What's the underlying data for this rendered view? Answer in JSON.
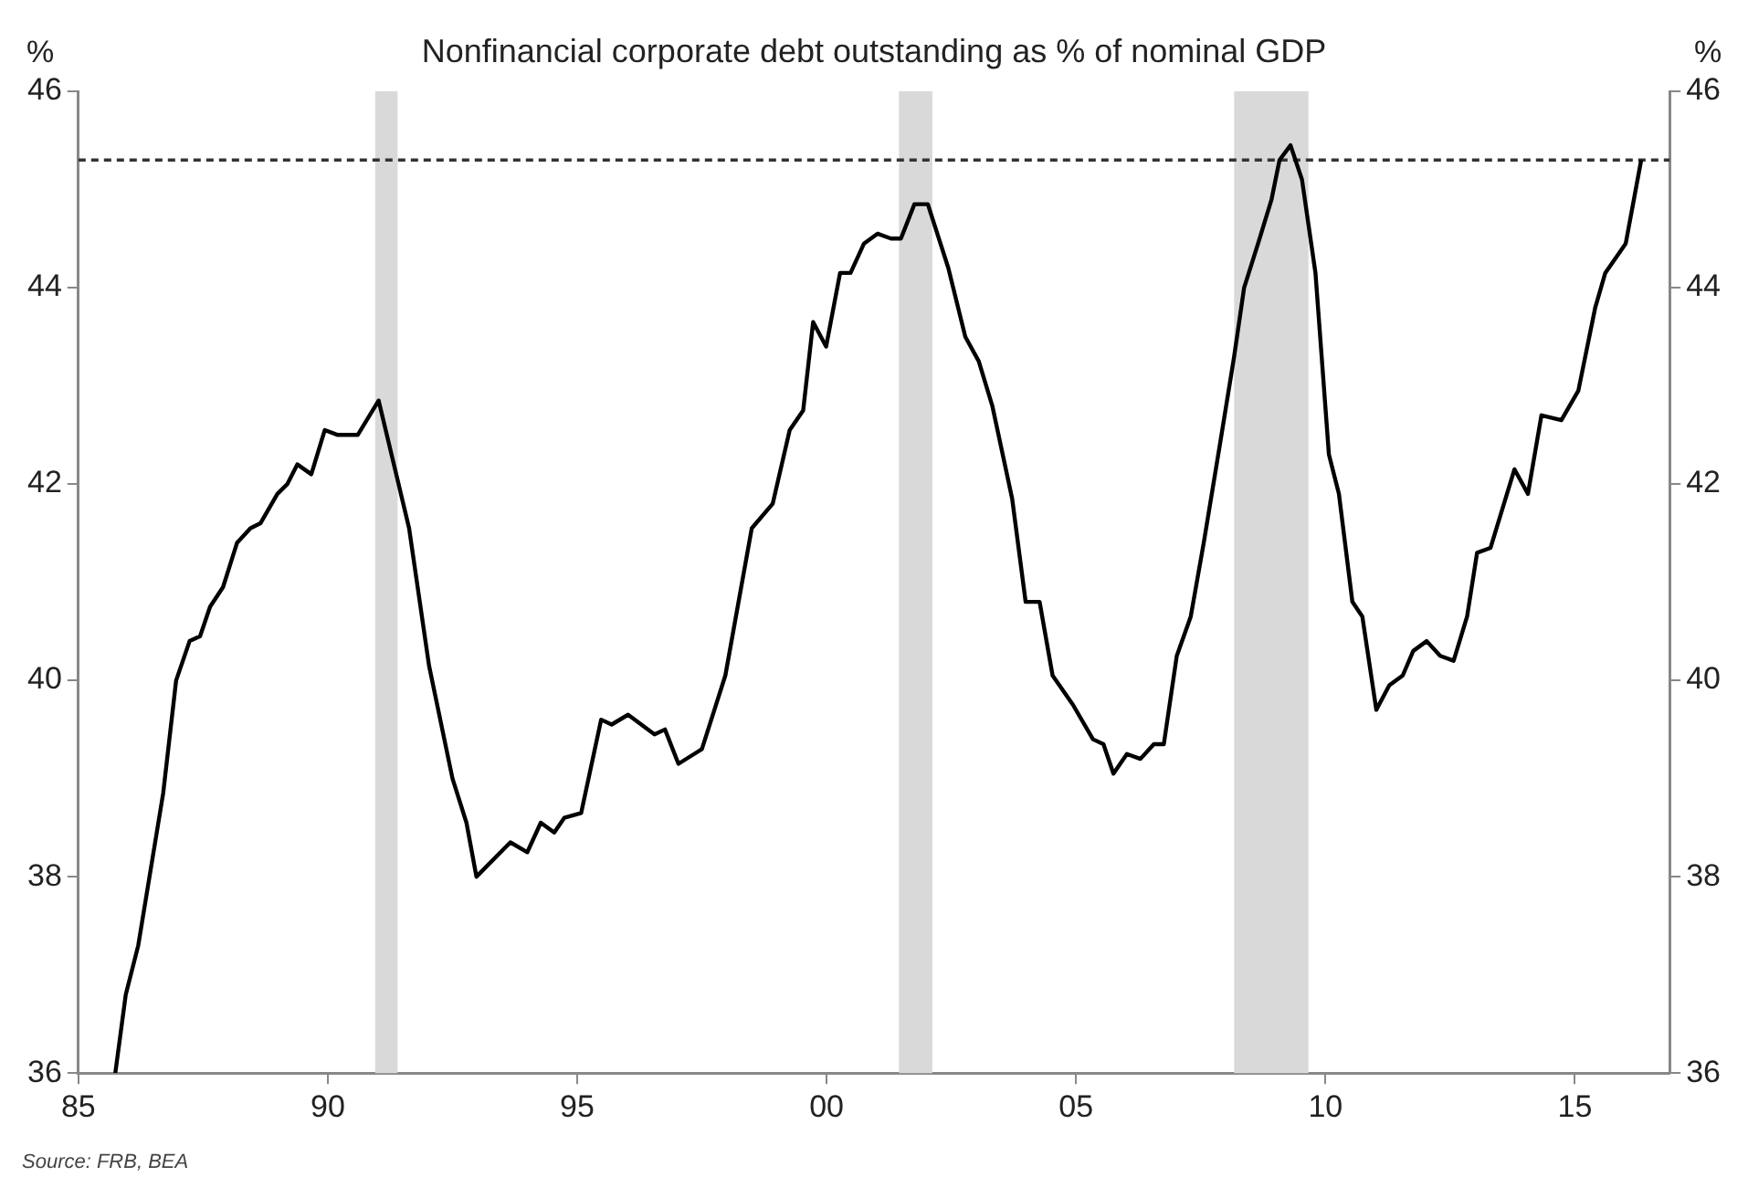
{
  "chart_data": {
    "type": "line",
    "title": "Nonfinancial corporate debt outstanding as % of nominal GDP",
    "ylabel": "%",
    "y2label": "%",
    "x": [
      1985.74,
      1985.95,
      1986.2,
      1986.7,
      1986.96,
      1987.23,
      1987.44,
      1987.64,
      1987.9,
      1988.18,
      1988.45,
      1988.65,
      1988.99,
      1989.19,
      1989.39,
      1989.67,
      1989.94,
      1990.2,
      1990.6,
      1991.02,
      1991.63,
      1992.03,
      1992.5,
      1992.78,
      1992.98,
      1993.66,
      1994.0,
      1994.27,
      1994.54,
      1994.74,
      1995.08,
      1995.48,
      1995.69,
      1996.02,
      1996.55,
      1996.76,
      1997.03,
      1997.5,
      1997.97,
      1998.5,
      1998.92,
      1999.26,
      1999.53,
      1999.73,
      1999.99,
      2000.27,
      2000.48,
      2000.75,
      2001.02,
      2001.29,
      2001.49,
      2001.76,
      2002.03,
      2002.44,
      2002.78,
      2003.05,
      2003.32,
      2003.72,
      2003.99,
      2004.27,
      2004.53,
      2004.94,
      2005.34,
      2005.55,
      2005.75,
      2006.02,
      2006.29,
      2006.56,
      2006.76,
      2007.02,
      2007.3,
      2007.56,
      2007.9,
      2008.17,
      2008.37,
      2008.65,
      2008.92,
      2009.08,
      2009.3,
      2009.53,
      2009.8,
      2010.07,
      2010.27,
      2010.54,
      2010.74,
      2011.02,
      2011.28,
      2011.55,
      2011.76,
      2012.03,
      2012.3,
      2012.57,
      2012.84,
      2013.04,
      2013.31,
      2013.79,
      2014.06,
      2014.33,
      2014.73,
      2015.07,
      2015.41,
      2015.61,
      2016.02,
      2016.33
    ],
    "series": [
      {
        "color": "#000000",
        "values": [
          36.0,
          36.8,
          37.3,
          38.85,
          40.0,
          40.4,
          40.45,
          40.75,
          40.95,
          41.4,
          41.55,
          41.6,
          41.9,
          42.0,
          42.2,
          42.1,
          42.55,
          42.5,
          42.5,
          42.85,
          41.55,
          40.15,
          39.0,
          38.55,
          38.0,
          38.35,
          38.25,
          38.55,
          38.45,
          38.6,
          38.65,
          39.6,
          39.55,
          39.65,
          39.45,
          39.5,
          39.15,
          39.3,
          40.05,
          41.55,
          41.8,
          42.55,
          42.75,
          43.65,
          43.4,
          44.15,
          44.15,
          44.45,
          44.55,
          44.5,
          44.5,
          44.85,
          44.85,
          44.2,
          43.5,
          43.25,
          42.8,
          41.85,
          40.8,
          40.8,
          40.05,
          39.75,
          39.4,
          39.35,
          39.05,
          39.25,
          39.2,
          39.35,
          39.35,
          40.25,
          40.65,
          41.4,
          42.45,
          43.3,
          44.0,
          44.45,
          44.9,
          45.3,
          45.45,
          45.1,
          44.15,
          42.3,
          41.9,
          40.8,
          40.65,
          39.7,
          39.95,
          40.05,
          40.3,
          40.4,
          40.25,
          40.2,
          40.65,
          41.3,
          41.35,
          42.15,
          41.9,
          42.7,
          42.65,
          42.95,
          43.8,
          44.15,
          44.45,
          45.3
        ]
      }
    ],
    "xlim": [
      1985,
      2016.9
    ],
    "xticks": [
      {
        "value": 1985,
        "label": "85"
      },
      {
        "value": 1990,
        "label": "90"
      },
      {
        "value": 1995,
        "label": "95"
      },
      {
        "value": 2000,
        "label": "00"
      },
      {
        "value": 2005,
        "label": "05"
      },
      {
        "value": 2010,
        "label": "10"
      },
      {
        "value": 2015,
        "label": "15"
      }
    ],
    "ylim": [
      36,
      46
    ],
    "yticks": [
      36,
      38,
      40,
      42,
      44,
      46
    ],
    "y2lim": [
      36,
      46
    ],
    "y2ticks": [
      36,
      38,
      40,
      42,
      44,
      46
    ],
    "ref_lines": [
      {
        "axis": "y",
        "value": 45.3,
        "color": "#333333",
        "line_style": "dashed"
      }
    ],
    "bands": [
      {
        "axis": "x",
        "from": 1990.95,
        "to": 1991.4,
        "color": "#d9d9d9"
      },
      {
        "axis": "x",
        "from": 2001.45,
        "to": 2002.12,
        "color": "#d9d9d9"
      },
      {
        "axis": "x",
        "from": 2008.17,
        "to": 2009.66,
        "color": "#d9d9d9"
      }
    ],
    "annotations": [
      "Source: FRB, BEA"
    ],
    "grid": false,
    "legend": false,
    "marker": "none",
    "line_style": "solid"
  }
}
